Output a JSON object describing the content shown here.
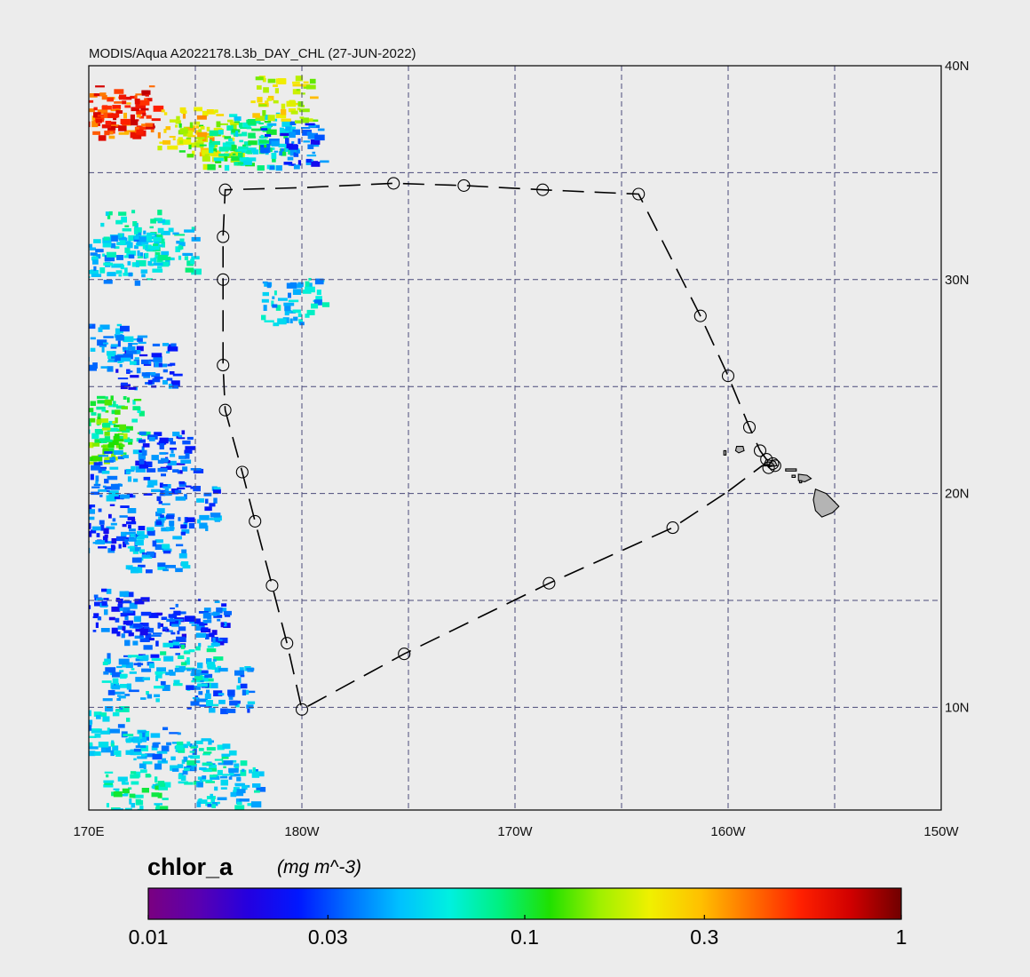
{
  "title": "MODIS/Aqua A2022178.L3b_DAY_CHL (27-JUN-2022)",
  "map": {
    "lon_range": [
      170,
      210
    ],
    "lat_range": [
      5.2,
      40
    ],
    "grid_lons": [
      175,
      180,
      185,
      190,
      195,
      200,
      205
    ],
    "grid_lats": [
      10,
      15,
      20,
      25,
      30,
      35
    ],
    "lon_ticks": [
      {
        "lon": 170,
        "label": "170E"
      },
      {
        "lon": 180,
        "label": "180W"
      },
      {
        "lon": 190,
        "label": "170W"
      },
      {
        "lon": 200,
        "label": "160W"
      },
      {
        "lon": 210,
        "label": "150W"
      }
    ],
    "lat_ticks": [
      {
        "lat": 40,
        "label": "40N"
      },
      {
        "lat": 30,
        "label": "30N"
      },
      {
        "lat": 20,
        "label": "20N"
      },
      {
        "lat": 10,
        "label": "10N"
      }
    ],
    "colors": {
      "background": "#ececec",
      "grid": "#4a4a7a",
      "land": "#b4b4b4",
      "track": "#000000"
    }
  },
  "cruise_track": [
    {
      "lon": 200.0,
      "lat": 20.1
    },
    {
      "lon": 201.6,
      "lat": 21.3
    },
    {
      "lon": 202.0,
      "lat": 21.3
    },
    {
      "lon": 202.2,
      "lat": 21.3
    },
    {
      "lon": 202.1,
      "lat": 21.4
    },
    {
      "lon": 201.8,
      "lat": 21.6
    },
    {
      "lon": 201.5,
      "lat": 22.0
    },
    {
      "lon": 201.0,
      "lat": 23.1
    },
    {
      "lon": 200.0,
      "lat": 25.5
    },
    {
      "lon": 198.7,
      "lat": 28.3
    },
    {
      "lon": 195.8,
      "lat": 34.0
    },
    {
      "lon": 191.3,
      "lat": 34.2
    },
    {
      "lon": 187.6,
      "lat": 34.4
    },
    {
      "lon": 184.3,
      "lat": 34.5
    },
    {
      "lon": 180.0,
      "lat": 34.3
    },
    {
      "lon": 176.4,
      "lat": 34.2
    },
    {
      "lon": 176.3,
      "lat": 32.0
    },
    {
      "lon": 176.3,
      "lat": 30.0
    },
    {
      "lon": 176.3,
      "lat": 26.0
    },
    {
      "lon": 176.4,
      "lat": 23.9
    },
    {
      "lon": 177.2,
      "lat": 21.0
    },
    {
      "lon": 177.8,
      "lat": 18.7
    },
    {
      "lon": 178.6,
      "lat": 15.7
    },
    {
      "lon": 179.3,
      "lat": 13.0
    },
    {
      "lon": 180.0,
      "lat": 9.9
    },
    {
      "lon": 184.8,
      "lat": 12.5
    },
    {
      "lon": 191.6,
      "lat": 15.8
    },
    {
      "lon": 197.4,
      "lat": 18.4
    },
    {
      "lon": 200.0,
      "lat": 20.1
    }
  ],
  "stations": [
    {
      "lon": 176.4,
      "lat": 34.2
    },
    {
      "lon": 184.3,
      "lat": 34.5
    },
    {
      "lon": 187.6,
      "lat": 34.4
    },
    {
      "lon": 191.3,
      "lat": 34.2
    },
    {
      "lon": 195.8,
      "lat": 34.0
    },
    {
      "lon": 198.7,
      "lat": 28.3
    },
    {
      "lon": 200.0,
      "lat": 25.5
    },
    {
      "lon": 201.0,
      "lat": 23.1
    },
    {
      "lon": 201.5,
      "lat": 22.0
    },
    {
      "lon": 201.8,
      "lat": 21.6
    },
    {
      "lon": 202.1,
      "lat": 21.4
    },
    {
      "lon": 201.9,
      "lat": 21.2
    },
    {
      "lon": 202.2,
      "lat": 21.3
    },
    {
      "lon": 176.3,
      "lat": 32.0
    },
    {
      "lon": 176.3,
      "lat": 30.0
    },
    {
      "lon": 176.3,
      "lat": 26.0
    },
    {
      "lon": 176.4,
      "lat": 23.9
    },
    {
      "lon": 177.2,
      "lat": 21.0
    },
    {
      "lon": 177.8,
      "lat": 18.7
    },
    {
      "lon": 178.6,
      "lat": 15.7
    },
    {
      "lon": 179.3,
      "lat": 13.0
    },
    {
      "lon": 180.0,
      "lat": 9.9
    },
    {
      "lon": 184.8,
      "lat": 12.5
    },
    {
      "lon": 191.6,
      "lat": 15.8
    },
    {
      "lon": 197.4,
      "lat": 18.4
    }
  ],
  "islands": [
    {
      "name": "Hawaii",
      "points": [
        [
          204.1,
          20.2
        ],
        [
          204.6,
          20.0
        ],
        [
          205.0,
          19.6
        ],
        [
          205.2,
          19.4
        ],
        [
          204.9,
          19.1
        ],
        [
          204.4,
          18.9
        ],
        [
          204.1,
          19.2
        ],
        [
          204.0,
          19.7
        ]
      ]
    },
    {
      "name": "Maui",
      "points": [
        [
          203.3,
          20.9
        ],
        [
          203.7,
          20.85
        ],
        [
          203.9,
          20.7
        ],
        [
          203.6,
          20.55
        ],
        [
          203.3,
          20.6
        ]
      ]
    },
    {
      "name": "Molokai",
      "points": [
        [
          202.7,
          21.15
        ],
        [
          203.2,
          21.15
        ],
        [
          203.2,
          21.05
        ],
        [
          202.7,
          21.05
        ]
      ]
    },
    {
      "name": "Lanai",
      "points": [
        [
          203.0,
          20.85
        ],
        [
          203.15,
          20.85
        ],
        [
          203.15,
          20.75
        ],
        [
          203.0,
          20.75
        ]
      ]
    },
    {
      "name": "Kahoolawe",
      "points": [
        [
          203.35,
          20.6
        ],
        [
          203.45,
          20.6
        ],
        [
          203.45,
          20.5
        ],
        [
          203.35,
          20.5
        ]
      ]
    },
    {
      "name": "Oahu",
      "points": [
        [
          201.8,
          21.6
        ],
        [
          202.2,
          21.5
        ],
        [
          202.3,
          21.3
        ],
        [
          201.9,
          21.25
        ],
        [
          201.7,
          21.4
        ]
      ]
    },
    {
      "name": "Kauai",
      "points": [
        [
          200.4,
          22.2
        ],
        [
          200.7,
          22.2
        ],
        [
          200.75,
          22.0
        ],
        [
          200.5,
          21.9
        ],
        [
          200.35,
          22.0
        ]
      ]
    },
    {
      "name": "Niihau",
      "points": [
        [
          199.8,
          22.0
        ],
        [
          199.9,
          22.0
        ],
        [
          199.9,
          21.8
        ],
        [
          199.8,
          21.8
        ]
      ]
    }
  ],
  "chlorophyll_patches": [
    {
      "lon": 171.0,
      "lat": 37.8,
      "chl": 0.45
    },
    {
      "lon": 171.6,
      "lat": 38.0,
      "chl": 0.55
    },
    {
      "lon": 174.6,
      "lat": 37.0,
      "chl": 0.25
    },
    {
      "lon": 175.6,
      "lat": 36.4,
      "chl": 0.15
    },
    {
      "lon": 177.0,
      "lat": 36.4,
      "chl": 0.08
    },
    {
      "lon": 178.0,
      "lat": 36.8,
      "chl": 0.07
    },
    {
      "lon": 179.5,
      "lat": 36.4,
      "chl": 0.03
    },
    {
      "lon": 179.0,
      "lat": 38.5,
      "chl": 0.2
    },
    {
      "lon": 172.0,
      "lat": 32.2,
      "chl": 0.06
    },
    {
      "lon": 171.3,
      "lat": 31.0,
      "chl": 0.05
    },
    {
      "lon": 173.5,
      "lat": 31.5,
      "chl": 0.06
    },
    {
      "lon": 179.5,
      "lat": 29.0,
      "chl": 0.05
    },
    {
      "lon": 171.0,
      "lat": 27.0,
      "chl": 0.04
    },
    {
      "lon": 172.5,
      "lat": 26.0,
      "chl": 0.03
    },
    {
      "lon": 171.0,
      "lat": 23.5,
      "chl": 0.09
    },
    {
      "lon": 170.4,
      "lat": 22.5,
      "chl": 0.12
    },
    {
      "lon": 171.5,
      "lat": 21.0,
      "chl": 0.035
    },
    {
      "lon": 173.5,
      "lat": 22.0,
      "chl": 0.03
    },
    {
      "lon": 171.0,
      "lat": 18.5,
      "chl": 0.03
    },
    {
      "lon": 173.0,
      "lat": 17.5,
      "chl": 0.04
    },
    {
      "lon": 174.5,
      "lat": 19.5,
      "chl": 0.035
    },
    {
      "lon": 171.0,
      "lat": 14.5,
      "chl": 0.03
    },
    {
      "lon": 173.0,
      "lat": 13.5,
      "chl": 0.028
    },
    {
      "lon": 175.0,
      "lat": 14.0,
      "chl": 0.03
    },
    {
      "lon": 172.0,
      "lat": 11.5,
      "chl": 0.045
    },
    {
      "lon": 174.5,
      "lat": 12.0,
      "chl": 0.06
    },
    {
      "lon": 176.0,
      "lat": 11.0,
      "chl": 0.04
    },
    {
      "lon": 171.0,
      "lat": 9.0,
      "chl": 0.05
    },
    {
      "lon": 173.5,
      "lat": 8.0,
      "chl": 0.045
    },
    {
      "lon": 175.5,
      "lat": 7.5,
      "chl": 0.06
    },
    {
      "lon": 172.0,
      "lat": 6.0,
      "chl": 0.07
    },
    {
      "lon": 176.5,
      "lat": 6.5,
      "chl": 0.05
    }
  ],
  "colorbar": {
    "variable": "chlor_a",
    "units": "(mg m^-3)",
    "scale": "log",
    "range": [
      0.01,
      1
    ],
    "colors": [
      "#7a0080",
      "#5a00b0",
      "#2400e0",
      "#0018ff",
      "#0070ff",
      "#00c0ff",
      "#00f0e0",
      "#00f080",
      "#20e000",
      "#a0f000",
      "#f0f000",
      "#ffc000",
      "#ff7000",
      "#ff2000",
      "#d00000",
      "#700000"
    ],
    "ticks": [
      {
        "value": 0.01,
        "label": "0.01"
      },
      {
        "value": 0.03,
        "label": "0.03"
      },
      {
        "value": 0.1,
        "label": "0.1"
      },
      {
        "value": 0.3,
        "label": "0.3"
      },
      {
        "value": 1,
        "label": "1"
      }
    ]
  }
}
